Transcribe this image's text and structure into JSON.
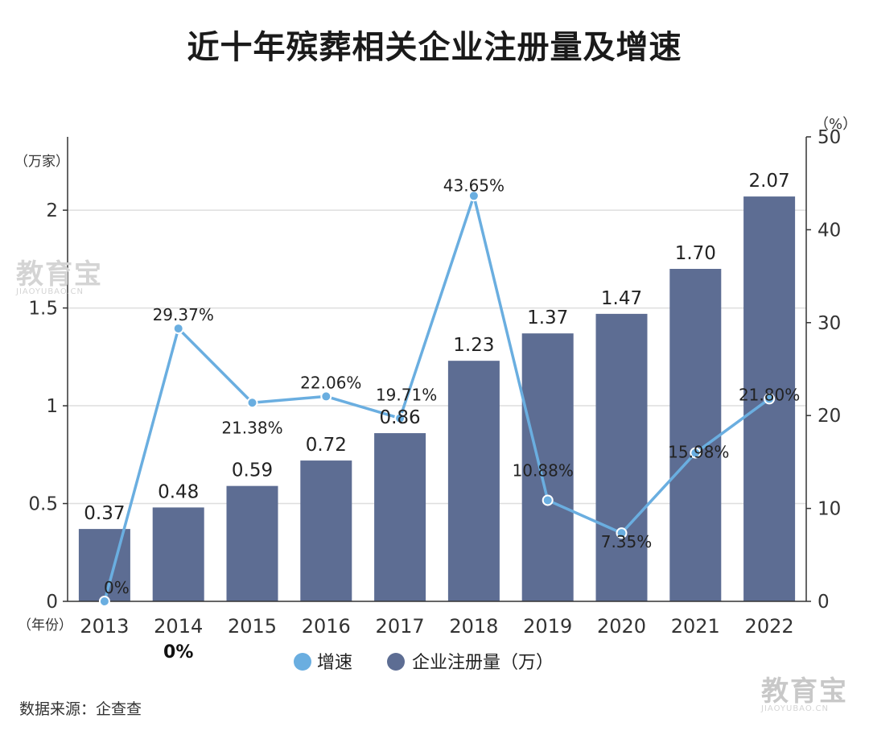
{
  "title": "近十年殡葬相关企业注册量及增速",
  "source": "数据来源：企查查",
  "watermark": {
    "text": "教育宝",
    "domain": "JIAOYUBAO.CN"
  },
  "colors": {
    "bar": "#5d6d93",
    "line": "#6aaee0",
    "grid": "#dedede",
    "axis": "#333333"
  },
  "chart_data": {
    "type": "bar",
    "title": "近十年殡葬相关企业注册量及增速",
    "categories": [
      "2013",
      "2014",
      "2015",
      "2016",
      "2017",
      "2018",
      "2019",
      "2020",
      "2021",
      "2022"
    ],
    "x_unit": "（年份）",
    "y_left": {
      "unit": "（万家）",
      "lim": [
        0,
        2.375
      ],
      "ticks": [
        0,
        0.5,
        1,
        1.5,
        2
      ],
      "tick_labels": [
        "0",
        "0.5",
        "1",
        "1.5",
        "2"
      ]
    },
    "y_right": {
      "unit": "（%）",
      "lim": [
        0,
        50
      ],
      "ticks": [
        0,
        10,
        20,
        30,
        40,
        50
      ],
      "tick_labels": [
        "0",
        "10",
        "20",
        "30",
        "40",
        "50"
      ]
    },
    "series": [
      {
        "name": "企业注册量（万）",
        "type": "bar",
        "axis": "left",
        "values": [
          0.37,
          0.48,
          0.59,
          0.72,
          0.86,
          1.23,
          1.37,
          1.47,
          1.7,
          2.07
        ],
        "labels": [
          "0.37",
          "0.48",
          "0.59",
          "0.72",
          "0.86",
          "1.23",
          "1.37",
          "1.47",
          "1.70",
          "2.07"
        ]
      },
      {
        "name": "增速",
        "type": "line",
        "axis": "right",
        "values": [
          0,
          29.37,
          21.38,
          22.06,
          19.71,
          43.65,
          10.88,
          7.35,
          15.98,
          21.8
        ],
        "labels": [
          "0%",
          "29.37%",
          "21.38%",
          "22.06%",
          "19.71%",
          "43.65%",
          "10.88%",
          "7.35%",
          "15.98%",
          "21.80%"
        ]
      }
    ],
    "extra_annotations": [
      {
        "category": "2014",
        "text": "0%"
      }
    ],
    "grid": true,
    "legend": {
      "position": "bottom"
    }
  }
}
